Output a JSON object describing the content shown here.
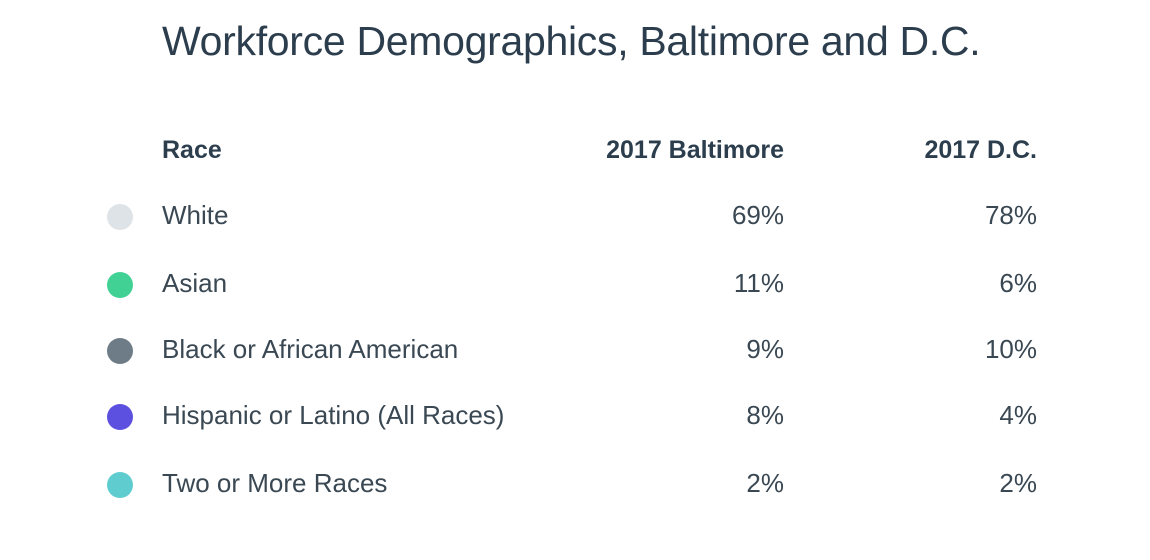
{
  "title": "Workforce Demographics, Baltimore and D.C.",
  "headers": {
    "race": "Race",
    "baltimore": "2017 Baltimore",
    "dc": "2017 D.C."
  },
  "rows": [
    {
      "label": "White",
      "baltimore": "69%",
      "dc": "78%",
      "color": "#dde3e6"
    },
    {
      "label": "Asian",
      "baltimore": "11%",
      "dc": "6%",
      "color": "#42d195"
    },
    {
      "label": "Black or African American",
      "baltimore": "9%",
      "dc": "10%",
      "color": "#6d7c86"
    },
    {
      "label": "Hispanic or Latino (All Races)",
      "baltimore": "8%",
      "dc": "4%",
      "color": "#5b50e0"
    },
    {
      "label": "Two or More Races",
      "baltimore": "2%",
      "dc": "2%",
      "color": "#5fcdd0"
    }
  ],
  "chart_data": {
    "type": "table",
    "title": "Workforce Demographics, Baltimore and D.C.",
    "columns": [
      "Race",
      "2017 Baltimore",
      "2017 D.C."
    ],
    "categories": [
      "White",
      "Asian",
      "Black or African American",
      "Hispanic or Latino (All Races)",
      "Two or More Races"
    ],
    "series": [
      {
        "name": "2017 Baltimore",
        "values": [
          69,
          11,
          9,
          8,
          2
        ]
      },
      {
        "name": "2017 D.C.",
        "values": [
          78,
          6,
          10,
          4,
          2
        ]
      }
    ],
    "unit": "%"
  }
}
